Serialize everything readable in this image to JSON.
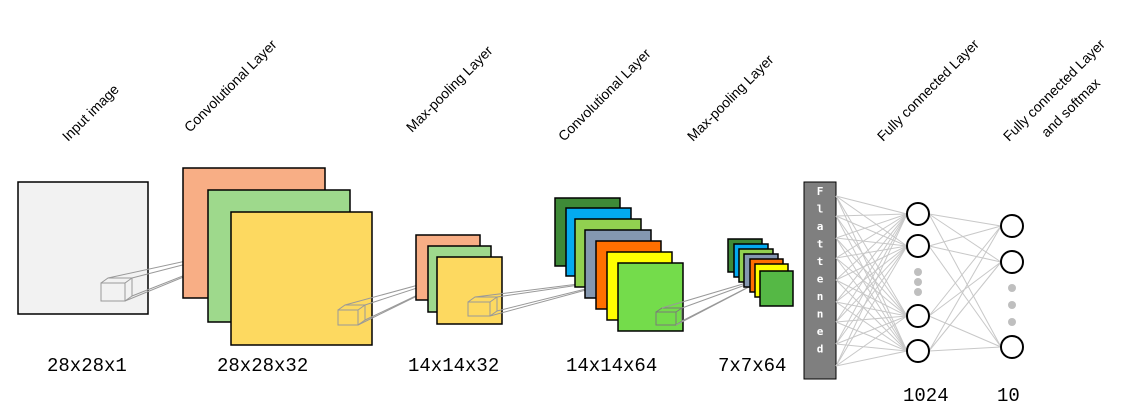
{
  "layers": [
    {
      "id": "input",
      "name": "Input image",
      "dims": "28x28x1"
    },
    {
      "id": "conv1",
      "name": "Convolutional Layer",
      "dims": "28x28x32"
    },
    {
      "id": "pool1",
      "name": "Max-pooling Layer",
      "dims": "14x14x32"
    },
    {
      "id": "conv2",
      "name": "Convolutional Layer",
      "dims": "14x14x64"
    },
    {
      "id": "pool2",
      "name": "Max-pooling Layer",
      "dims": "7x7x64"
    },
    {
      "id": "fc1",
      "name": "Fully connected Layer",
      "dims": "1024"
    },
    {
      "id": "fc2",
      "name_line1": "Fully connected Layer",
      "name_line2": "and softmax",
      "dims": "10"
    }
  ],
  "flatten_label": "Flattenned",
  "colors": {
    "input": "#f2f2f2",
    "orange": "#f8ae85",
    "green_light": "#9ed98c",
    "yellow": "#fdd960",
    "dark_green": "#3e8a37",
    "blue": "#03aaf0",
    "green_mid": "#91d050",
    "gray_blue": "#8497b0",
    "orange_bright": "#ff6f00",
    "yellow_bright": "#ffff00",
    "green_bright": "#74dc4b",
    "pool2_green": "#55b845",
    "flatten_bar": "#7f7f7f",
    "connection": "#c8c8c8",
    "projection": "#999999",
    "dots": "#bfbfbf"
  }
}
